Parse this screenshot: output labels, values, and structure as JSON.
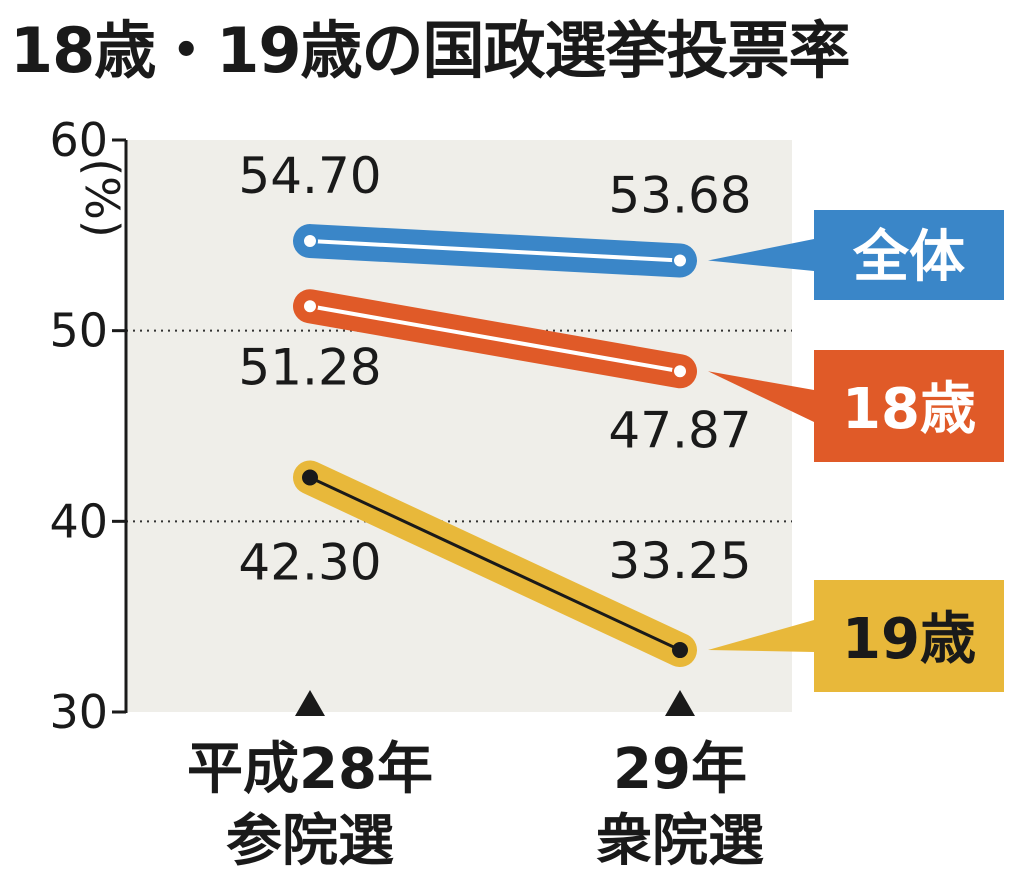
{
  "chart_data": {
    "type": "line",
    "title": "18歳・19歳の国政選挙投票率",
    "ylabel": "%",
    "ylim": [
      30,
      60
    ],
    "yticks": [
      60,
      50,
      40,
      30
    ],
    "gridlines": [
      50,
      40
    ],
    "categories": [
      {
        "line1": "平成28年",
        "line2": "参院選"
      },
      {
        "line1": "29年",
        "line2": "衆院選"
      }
    ],
    "series": [
      {
        "name": "全体",
        "values": [
          54.7,
          53.68
        ],
        "labels": [
          "54.70",
          "53.68"
        ],
        "color": "#3a86c8"
      },
      {
        "name": "18歳",
        "values": [
          51.28,
          47.87
        ],
        "labels": [
          "51.28",
          "47.87"
        ],
        "color": "#e05a28"
      },
      {
        "name": "19歳",
        "values": [
          42.3,
          33.25
        ],
        "labels": [
          "42.30",
          "33.25"
        ],
        "color": "#e8b83a"
      }
    ]
  }
}
